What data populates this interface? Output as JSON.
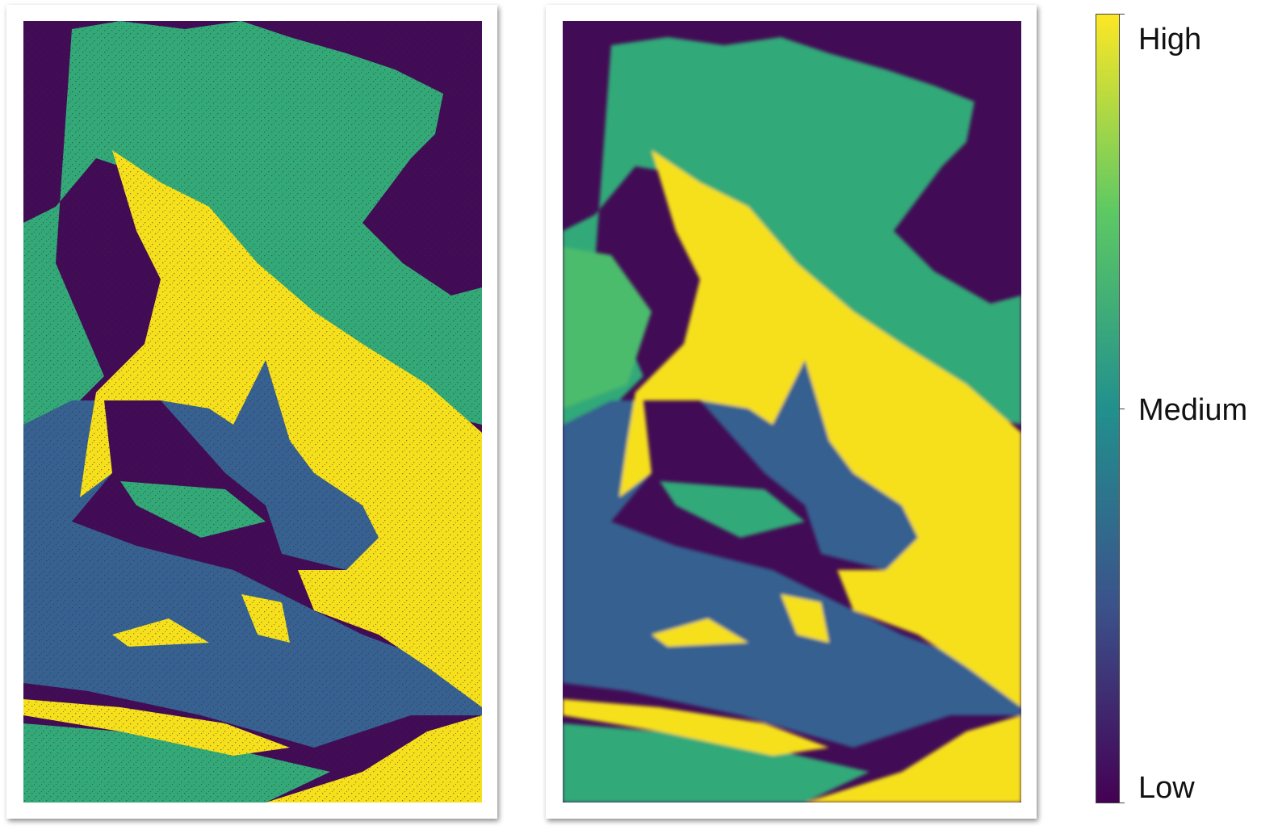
{
  "colorbar": {
    "labels": {
      "high": "High",
      "medium": "Medium",
      "low": "Low"
    },
    "colors": [
      "#440154",
      "#3b528b",
      "#21908d",
      "#5dc963",
      "#fde725"
    ]
  },
  "palette": {
    "low": "#420b55",
    "blue": "#366190",
    "green": "#33a978",
    "yellow": "#f6e01c",
    "green_light": "#4cbb6c"
  }
}
